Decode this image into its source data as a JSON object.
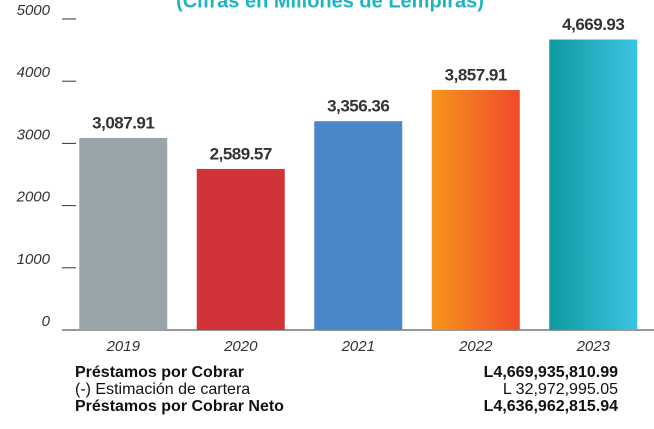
{
  "chart_data": {
    "type": "bar",
    "title": "(Cifras en Millones de Lempiras)",
    "categories": [
      "2019",
      "2020",
      "2021",
      "2022",
      "2023"
    ],
    "values": [
      3087.91,
      2589.57,
      3356.36,
      3857.91,
      4669.93
    ],
    "value_labels": [
      "3,087.91",
      "2,589.57",
      "3,356.36",
      "3,857.91",
      "4,669.93"
    ],
    "colors": [
      "#9aa5ab",
      "#d13438",
      "#4a87c9",
      [
        "#f7941d",
        "#ef4a2a"
      ],
      [
        "#0f9aa0",
        "#3bc4e2"
      ]
    ],
    "ylim": [
      0,
      5000
    ],
    "yticks": [
      0,
      1000,
      2000,
      3000,
      4000,
      5000
    ],
    "grid": false
  },
  "table": {
    "rows": [
      [
        "Préstamos por Cobrar",
        "L4,669,935,810.99"
      ],
      [
        "(-) Estimación de cartera",
        "L 32,972,995.05"
      ],
      [
        "Préstamos por Cobrar Neto",
        "L4,636,962,815.94"
      ]
    ]
  }
}
